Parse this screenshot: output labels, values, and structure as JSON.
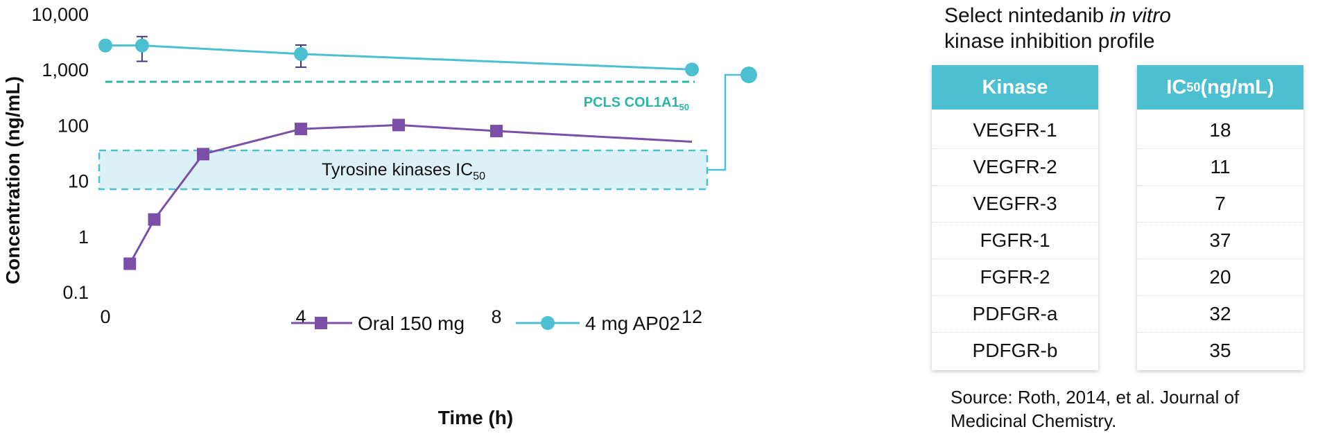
{
  "chart_data": {
    "type": "line",
    "xlabel": "Time (h)",
    "ylabel": "Concentration (ng/mL)",
    "xlim": [
      0,
      12
    ],
    "ylim": [
      0.1,
      10000
    ],
    "yscale": "log",
    "x_ticks": [
      "0",
      "4",
      "8",
      "12"
    ],
    "y_ticks": [
      "0.1",
      "1",
      "10",
      "100",
      "1,000",
      "10,000"
    ],
    "grid": false,
    "legend_position": "bottom-center",
    "series": [
      {
        "name": "Oral 150 mg",
        "color": "#7b4fa8",
        "marker": "square",
        "x": [
          0.5,
          1,
          2,
          4,
          6,
          8,
          12
        ],
        "y": [
          0.32,
          2.0,
          30,
          85,
          100,
          78,
          50
        ],
        "marker_shown": [
          true,
          true,
          true,
          true,
          true,
          true,
          false
        ]
      },
      {
        "name": "4 mg AP02",
        "color": "#4cbfd0",
        "marker": "circle",
        "x": [
          0,
          0.75,
          4,
          12
        ],
        "y": [
          2700,
          2700,
          1900,
          1000
        ],
        "error_low": [
          null,
          1400,
          1100,
          null
        ],
        "error_high": [
          null,
          3900,
          2750,
          null
        ]
      }
    ],
    "reference_line": {
      "label_main": "PCLS COL1A1",
      "label_sub": "50",
      "y": 600,
      "color": "#2bb6a2"
    },
    "reference_band": {
      "label_main": "Tyrosine kinases IC",
      "label_sub": "50",
      "y_low": 7,
      "y_high": 35,
      "color": "#4cbfd0"
    }
  },
  "panel": {
    "title_part1": "Select nintedanib ",
    "title_italic": "in vitro",
    "title_line2": "kinase inhibition profile"
  },
  "table": {
    "kinase_header": "Kinase",
    "ic50_header_main": "IC",
    "ic50_header_sub": "50",
    "ic50_header_unit": " (ng/mL)",
    "rows": [
      {
        "kinase": "VEGFR-1",
        "ic50": "18"
      },
      {
        "kinase": "VEGFR-2",
        "ic50": "11"
      },
      {
        "kinase": "VEGFR-3",
        "ic50": "7"
      },
      {
        "kinase": "FGFR-1",
        "ic50": "37"
      },
      {
        "kinase": "FGFR-2",
        "ic50": "20"
      },
      {
        "kinase": "PDFGR-a",
        "ic50": "32"
      },
      {
        "kinase": "PDFGR-b",
        "ic50": "35"
      }
    ]
  },
  "source": {
    "line1": "Source: Roth, 2014, et al. Journal of",
    "line2": "Medicinal Chemistry."
  }
}
